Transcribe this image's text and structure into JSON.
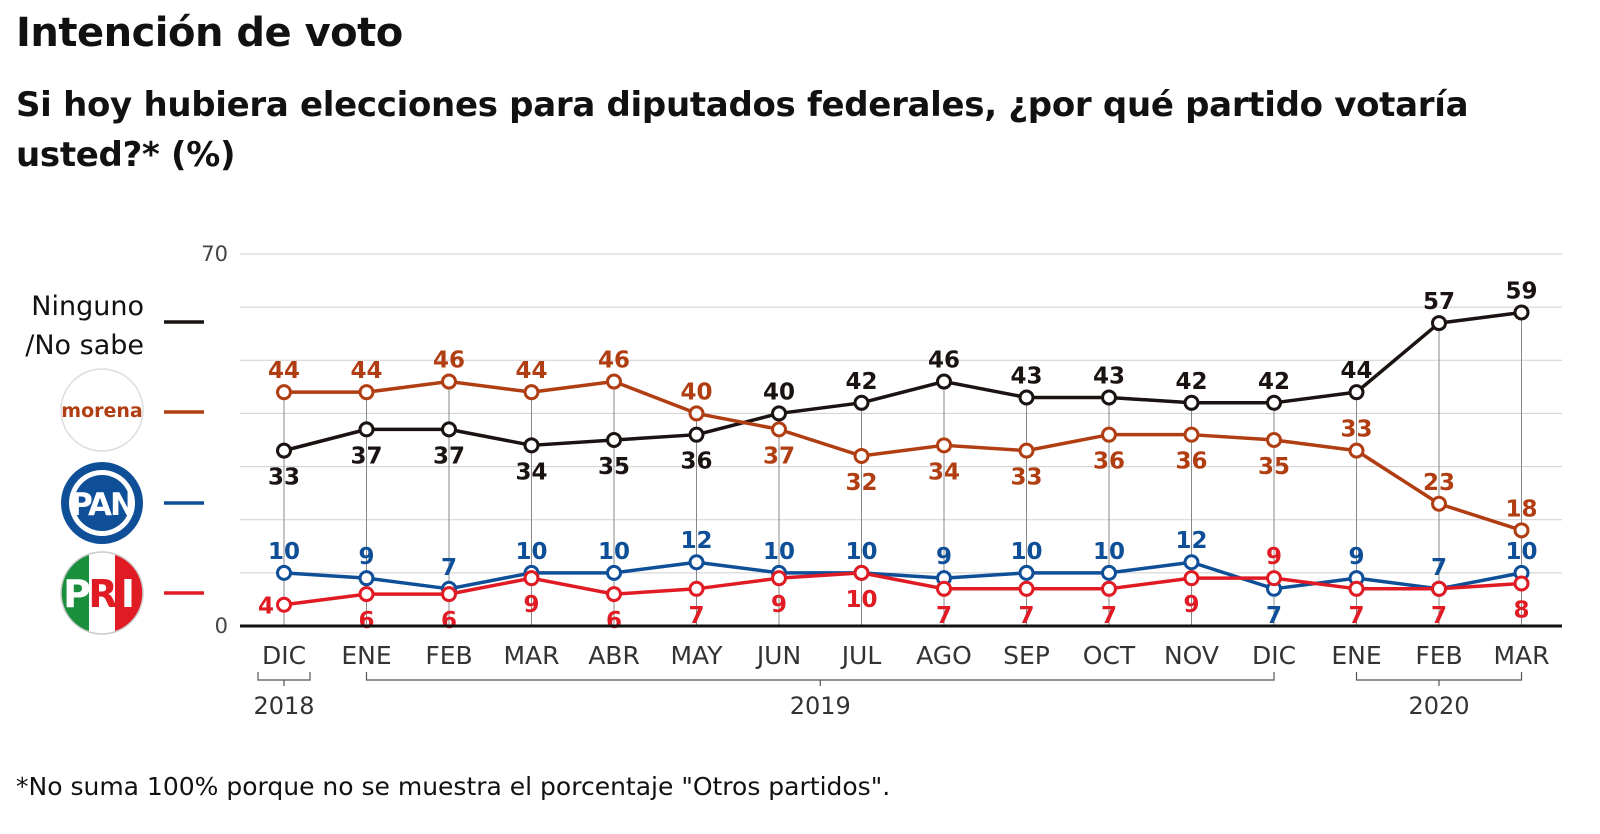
{
  "title": "Intención de voto",
  "subtitle": "Si hoy hubiera elecciones para diputados federales, ¿por qué partido votaría usted?* (%)",
  "footnote": "*No suma 100% porque no se muestra el porcentaje \"Otros partidos\".",
  "legend": {
    "ninguno_line1": "Ninguno",
    "ninguno_line2": "/No sabe",
    "morena_logo_text": "morena",
    "pan_logo_text": "PAN",
    "pri_logo_letters": [
      "P",
      "R",
      "I"
    ]
  },
  "chart_data": {
    "type": "line",
    "categories": [
      "DIC",
      "ENE",
      "FEB",
      "MAR",
      "ABR",
      "MAY",
      "JUN",
      "JUL",
      "AGO",
      "SEP",
      "OCT",
      "NOV",
      "DIC",
      "ENE",
      "FEB",
      "MAR"
    ],
    "years": [
      {
        "label": "2018",
        "from": 0,
        "to": 0
      },
      {
        "label": "2019",
        "from": 1,
        "to": 12
      },
      {
        "label": "2020",
        "from": 13,
        "to": 15
      }
    ],
    "ylim": [
      0,
      70
    ],
    "yticks": [
      0,
      70
    ],
    "grid": true,
    "series": [
      {
        "name": "Ninguno /No sabe",
        "color": "#1a1311",
        "values": [
          33,
          37,
          37,
          34,
          35,
          36,
          40,
          42,
          46,
          43,
          43,
          42,
          42,
          44,
          57,
          59
        ],
        "label_pos": [
          "below",
          "below",
          "below",
          "below",
          "below",
          "below",
          "above",
          "above",
          "above",
          "above",
          "above",
          "above",
          "above",
          "above",
          "above",
          "above"
        ]
      },
      {
        "name": "morena",
        "color": "#b13e12",
        "values": [
          44,
          44,
          46,
          44,
          46,
          40,
          37,
          32,
          34,
          33,
          36,
          36,
          35,
          33,
          23,
          18
        ],
        "label_pos": [
          "above",
          "above",
          "above",
          "above",
          "above",
          "above",
          "below",
          "below",
          "below",
          "below",
          "below",
          "below",
          "below",
          "above",
          "above",
          "above"
        ]
      },
      {
        "name": "PAN",
        "color": "#0f4f98",
        "values": [
          10,
          9,
          7,
          10,
          10,
          12,
          10,
          10,
          9,
          10,
          10,
          12,
          7,
          9,
          7,
          10
        ],
        "label_pos": [
          "above",
          "above",
          "above",
          "above",
          "above",
          "above",
          "above",
          "above",
          "above",
          "above",
          "above",
          "above",
          "below",
          "above",
          "above",
          "above"
        ]
      },
      {
        "name": "PRI",
        "color": "#e01b24",
        "values": [
          4,
          6,
          6,
          9,
          6,
          7,
          9,
          10,
          7,
          7,
          7,
          9,
          9,
          7,
          7,
          8
        ],
        "label_pos": [
          "left",
          "below",
          "below",
          "below",
          "below",
          "below",
          "below",
          "below",
          "below",
          "below",
          "below",
          "below",
          "above",
          "below",
          "below",
          "below"
        ]
      }
    ]
  }
}
